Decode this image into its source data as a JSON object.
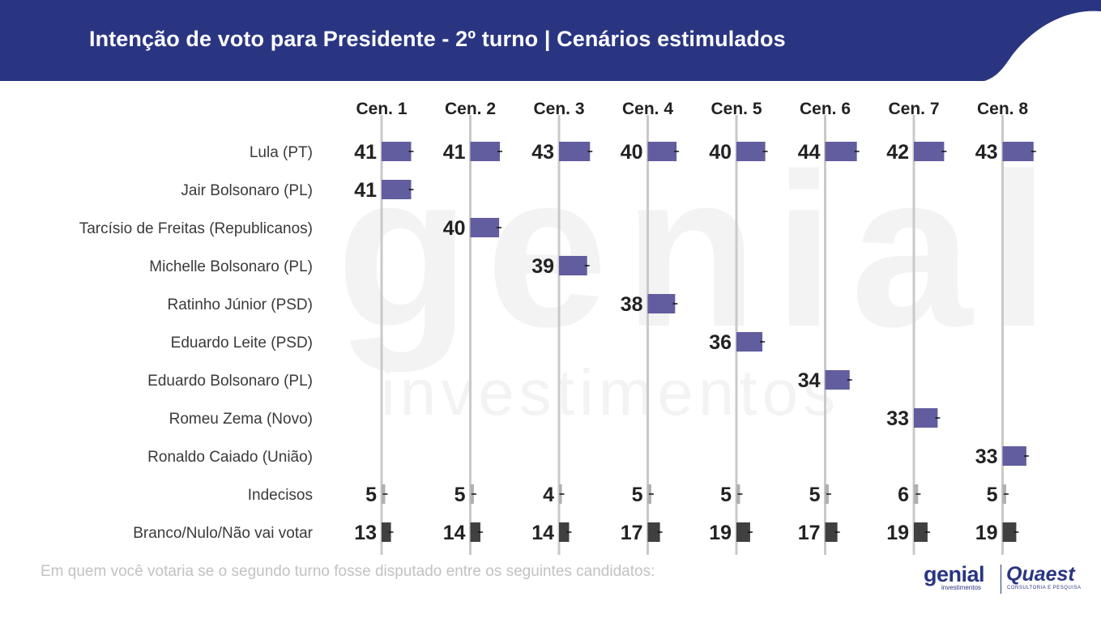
{
  "header": {
    "title": "Intenção de voto para Presidente - 2º turno | Cenários estimulados",
    "background_color": "#2a3582"
  },
  "watermark": {
    "brand": "genial",
    "sub": "investimentos"
  },
  "colors": {
    "candidate_bar": "#615d9e",
    "undecided_bar": "#b0b0b0",
    "blank_bar": "#404040",
    "gridline": "#c9c9c9",
    "value_text": "#222222"
  },
  "chart_data": {
    "type": "bar",
    "title": "Intenção de voto para Presidente - 2º turno | Cenários estimulados",
    "unit": "%",
    "scenarios": [
      "Cen. 1",
      "Cen. 2",
      "Cen. 3",
      "Cen. 4",
      "Cen. 5",
      "Cen. 6",
      "Cen. 7",
      "Cen. 8"
    ],
    "rows": [
      {
        "label": "Lula (PT)",
        "kind": "candidate",
        "values": [
          41,
          41,
          43,
          40,
          40,
          44,
          42,
          43
        ]
      },
      {
        "label": "Jair Bolsonaro (PL)",
        "kind": "candidate",
        "values": [
          41,
          null,
          null,
          null,
          null,
          null,
          null,
          null
        ]
      },
      {
        "label": "Tarcísio de Freitas (Republicanos)",
        "kind": "candidate",
        "values": [
          null,
          40,
          null,
          null,
          null,
          null,
          null,
          null
        ]
      },
      {
        "label": "Michelle Bolsonaro (PL)",
        "kind": "candidate",
        "values": [
          null,
          null,
          39,
          null,
          null,
          null,
          null,
          null
        ]
      },
      {
        "label": "Ratinho Júnior (PSD)",
        "kind": "candidate",
        "values": [
          null,
          null,
          null,
          38,
          null,
          null,
          null,
          null
        ]
      },
      {
        "label": "Eduardo Leite (PSD)",
        "kind": "candidate",
        "values": [
          null,
          null,
          null,
          null,
          36,
          null,
          null,
          null
        ]
      },
      {
        "label": "Eduardo Bolsonaro (PL)",
        "kind": "candidate",
        "values": [
          null,
          null,
          null,
          null,
          null,
          34,
          null,
          null
        ]
      },
      {
        "label": "Romeu Zema (Novo)",
        "kind": "candidate",
        "values": [
          null,
          null,
          null,
          null,
          null,
          null,
          33,
          null
        ]
      },
      {
        "label": "Ronaldo Caiado (União)",
        "kind": "candidate",
        "values": [
          null,
          null,
          null,
          null,
          null,
          null,
          null,
          33
        ]
      },
      {
        "label": "Indecisos",
        "kind": "undecided",
        "values": [
          5,
          5,
          4,
          5,
          5,
          5,
          6,
          5
        ]
      },
      {
        "label": "Branco/Nulo/Não vai votar",
        "kind": "blank",
        "values": [
          13,
          14,
          14,
          17,
          19,
          17,
          19,
          19
        ]
      }
    ]
  },
  "footer": {
    "note": "Em quem você votaria se o segundo turno fosse disputado entre os seguintes candidatos:",
    "logo_genial": "genial",
    "logo_genial_sub": "investimentos",
    "logo_quaest": "Quaest",
    "logo_quaest_sub": "CONSULTORIA E PESQUISA"
  }
}
